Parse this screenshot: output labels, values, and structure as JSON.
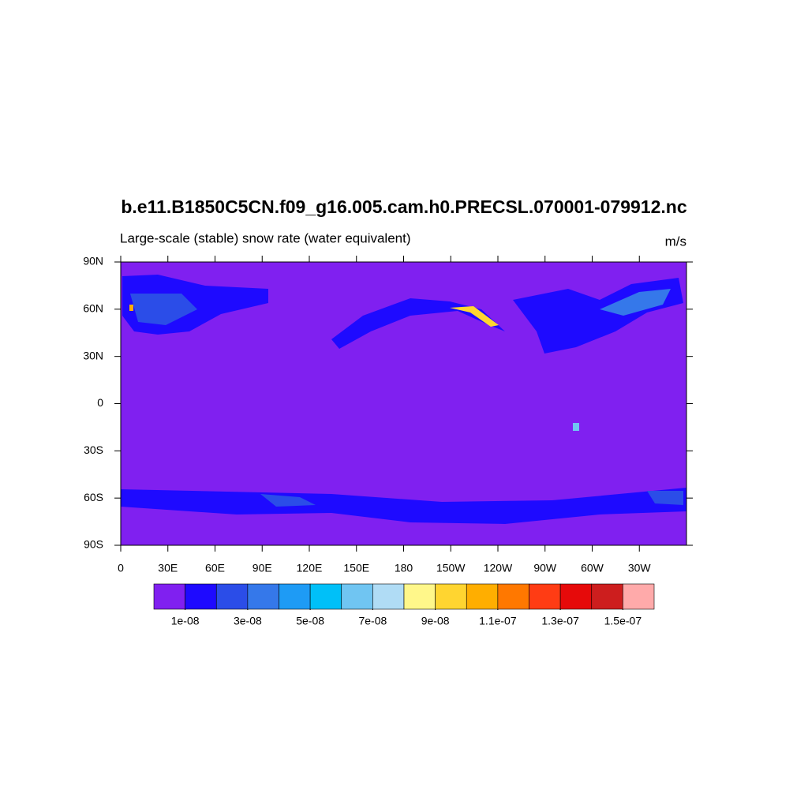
{
  "title": "b.e11.B1850C5CN.f09_g16.005.cam.h0.PRECSL.070001-079912.nc",
  "left_string": "Large-scale (stable) snow rate (water equivalent)",
  "right_string": "m/s",
  "lat_ticks": [
    {
      "value": 90,
      "label": "90N"
    },
    {
      "value": 60,
      "label": "60N"
    },
    {
      "value": 30,
      "label": "30N"
    },
    {
      "value": 0,
      "label": "0"
    },
    {
      "value": -30,
      "label": "30S"
    },
    {
      "value": -60,
      "label": "60S"
    },
    {
      "value": -90,
      "label": "90S"
    }
  ],
  "lon_ticks": [
    {
      "value": 0,
      "label": "0"
    },
    {
      "value": 30,
      "label": "30E"
    },
    {
      "value": 60,
      "label": "60E"
    },
    {
      "value": 90,
      "label": "90E"
    },
    {
      "value": 120,
      "label": "120E"
    },
    {
      "value": 150,
      "label": "150E"
    },
    {
      "value": 180,
      "label": "180"
    },
    {
      "value": 210,
      "label": "150W"
    },
    {
      "value": 240,
      "label": "120W"
    },
    {
      "value": 270,
      "label": "90W"
    },
    {
      "value": 300,
      "label": "60W"
    },
    {
      "value": 330,
      "label": "30W"
    }
  ],
  "colorbar": {
    "colors": [
      "#8020f0",
      "#1e0aff",
      "#2b4de8",
      "#3578ea",
      "#1e9bf5",
      "#00c0f8",
      "#70c5f2",
      "#b0dcf5",
      "#fff78a",
      "#ffd530",
      "#ffae00",
      "#ff7800",
      "#ff3c14",
      "#e60a0a",
      "#cd1e1e",
      "#ffaaaa"
    ],
    "labels": [
      {
        "value": 1e-08,
        "label": "1e-08"
      },
      {
        "value": 3e-08,
        "label": "3e-08"
      },
      {
        "value": 5e-08,
        "label": "5e-08"
      },
      {
        "value": 7e-08,
        "label": "7e-08"
      },
      {
        "value": 9e-08,
        "label": "9e-08"
      },
      {
        "value": 1.1e-07,
        "label": "1.1e-07"
      },
      {
        "value": 1.3e-07,
        "label": "1.3e-07"
      },
      {
        "value": 1.5e-07,
        "label": "1.5e-07"
      }
    ]
  }
}
